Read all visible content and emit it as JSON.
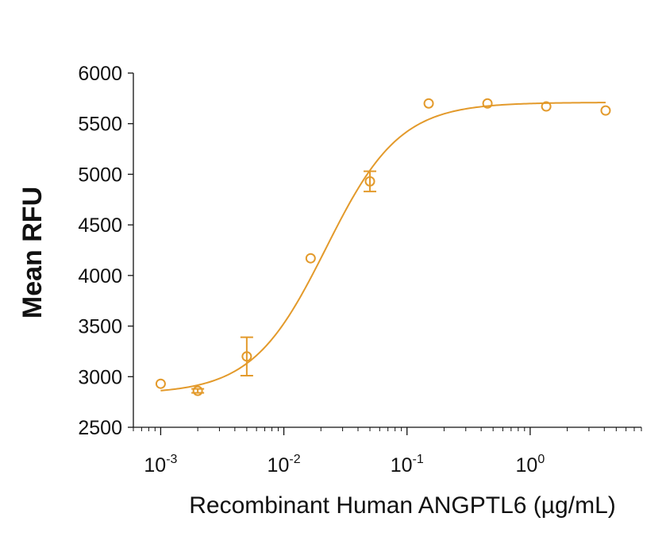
{
  "chart_data": {
    "type": "scatter",
    "title": "",
    "xlabel": "Recombinant Human ANGPTL6 (µg/mL)",
    "ylabel": "Mean RFU",
    "xscale": "log",
    "xlim": [
      0.0006,
      8
    ],
    "ylim": [
      2500,
      6000
    ],
    "yticks": [
      2500,
      3000,
      3500,
      4000,
      4500,
      5000,
      5500,
      6000
    ],
    "xticks": [
      {
        "value": 0.001,
        "base": "10",
        "exp": "-3"
      },
      {
        "value": 0.01,
        "base": "10",
        "exp": "-2"
      },
      {
        "value": 0.1,
        "base": "10",
        "exp": "-1"
      },
      {
        "value": 1,
        "base": "10",
        "exp": "0"
      }
    ],
    "grid": false,
    "legend": "none",
    "color": "#E39A2B",
    "series": [
      {
        "points": [
          {
            "x": 0.001,
            "y": 2930,
            "err": 0
          },
          {
            "x": 0.002,
            "y": 2860,
            "err": 20
          },
          {
            "x": 0.005,
            "y": 3200,
            "err": 190
          },
          {
            "x": 0.0165,
            "y": 4170,
            "err": 0
          },
          {
            "x": 0.05,
            "y": 4930,
            "err": 100
          },
          {
            "x": 0.15,
            "y": 5700,
            "err": 0
          },
          {
            "x": 0.45,
            "y": 5700,
            "err": 0
          },
          {
            "x": 1.35,
            "y": 5670,
            "err": 0
          },
          {
            "x": 4.1,
            "y": 5630,
            "err": 0
          }
        ],
        "fit": {
          "model": "4PL",
          "bottom": 2830,
          "top": 5710,
          "ec50": 0.022,
          "hill": 1.45
        }
      }
    ]
  }
}
